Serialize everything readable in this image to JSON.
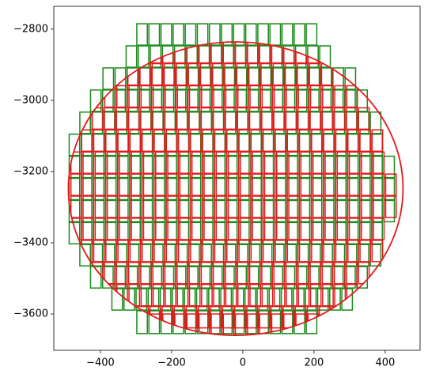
{
  "chart_data": {
    "type": "cells",
    "xlim": [
      -531,
      498
    ],
    "ylim": [
      -3702,
      -2736
    ],
    "xticks": [
      {
        "value": -400,
        "label": "−400"
      },
      {
        "value": -200,
        "label": "−200"
      },
      0,
      200,
      400
    ],
    "yticks": [
      {
        "value": -3600,
        "label": "−3600"
      },
      {
        "value": -3400,
        "label": "−3400"
      },
      {
        "value": -3200,
        "label": "−3200"
      },
      {
        "value": -3000,
        "label": "−3000"
      },
      {
        "value": -2800,
        "label": "−2800"
      }
    ],
    "col_width": 34,
    "series": [
      {
        "color": "#1a8a1a",
        "rows": [
          [
            -2785,
            -2845,
            -300,
            240
          ],
          [
            -2847,
            -2907,
            -330,
            275
          ],
          [
            -2909,
            -2969,
            -395,
            330
          ],
          [
            -2971,
            -3031,
            -430,
            365
          ],
          [
            -3033,
            -3093,
            -460,
            400
          ],
          [
            -3095,
            -3155,
            -490,
            420
          ],
          [
            -3157,
            -3217,
            -490,
            450
          ],
          [
            -3219,
            -3279,
            -490,
            450
          ],
          [
            -3281,
            -3341,
            -490,
            450
          ],
          [
            -3343,
            -3403,
            -490,
            420
          ],
          [
            -3405,
            -3465,
            -460,
            400
          ],
          [
            -3467,
            -3527,
            -430,
            365
          ],
          [
            -3529,
            -3589,
            -370,
            330
          ],
          [
            -3591,
            -3655,
            -300,
            240
          ]
        ]
      },
      {
        "color": "#e31a1c",
        "rows": [
          [
            -2835,
            -2895,
            -295,
            245
          ],
          [
            -2897,
            -2957,
            -325,
            280
          ],
          [
            -2959,
            -3019,
            -390,
            335
          ],
          [
            -3021,
            -3081,
            -425,
            370
          ],
          [
            -3083,
            -3143,
            -455,
            405
          ],
          [
            -3145,
            -3205,
            -485,
            425
          ],
          [
            -3207,
            -3267,
            -485,
            455
          ],
          [
            -3269,
            -3329,
            -485,
            455
          ],
          [
            -3331,
            -3391,
            -485,
            425
          ],
          [
            -3393,
            -3453,
            -455,
            405
          ],
          [
            -3455,
            -3515,
            -425,
            370
          ],
          [
            -3517,
            -3577,
            -390,
            335
          ],
          [
            -3579,
            -3639,
            -365,
            335
          ],
          [
            -3600,
            -3660,
            -295,
            245
          ]
        ],
        "outline": {
          "center": [
            -20,
            -3248
          ],
          "radii": [
            470,
            412
          ]
        }
      }
    ]
  }
}
